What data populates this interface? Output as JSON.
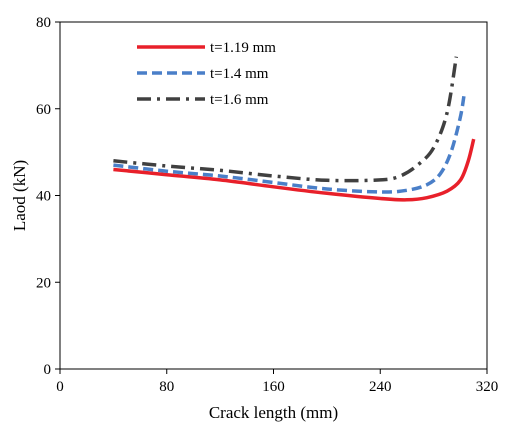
{
  "chart_data": {
    "type": "line",
    "xlabel": "Crack length (mm)",
    "ylabel": "Laod (kN)",
    "xlim": [
      0,
      320
    ],
    "ylim": [
      0,
      80
    ],
    "xticks": [
      "0",
      "80",
      "160",
      "240",
      "320"
    ],
    "yticks": [
      "0",
      "20",
      "40",
      "60",
      "80"
    ],
    "grid": false,
    "legend_position": "top-left",
    "series": [
      {
        "name": "t=1.19 mm",
        "color": "#e8202a",
        "style": "solid",
        "points": [
          [
            40,
            46
          ],
          [
            80,
            44.8
          ],
          [
            120,
            43.6
          ],
          [
            160,
            42
          ],
          [
            200,
            40.5
          ],
          [
            240,
            39.3
          ],
          [
            260,
            39
          ],
          [
            275,
            39.5
          ],
          [
            290,
            41
          ],
          [
            300,
            43.5
          ],
          [
            306,
            48
          ],
          [
            310,
            53
          ]
        ]
      },
      {
        "name": "t=1.4 mm",
        "color": "#4a7fc8",
        "style": "dashed",
        "points": [
          [
            40,
            47
          ],
          [
            80,
            45.6
          ],
          [
            120,
            44.5
          ],
          [
            160,
            43
          ],
          [
            200,
            41.5
          ],
          [
            240,
            40.8
          ],
          [
            260,
            41.2
          ],
          [
            275,
            42.5
          ],
          [
            285,
            45
          ],
          [
            293,
            50
          ],
          [
            300,
            58
          ],
          [
            303,
            63.5
          ]
        ]
      },
      {
        "name": "t=1.6 mm",
        "color": "#404040",
        "style": "dashdot",
        "points": [
          [
            40,
            48
          ],
          [
            80,
            46.8
          ],
          [
            120,
            45.8
          ],
          [
            160,
            44.5
          ],
          [
            200,
            43.5
          ],
          [
            240,
            43.6
          ],
          [
            255,
            44.5
          ],
          [
            268,
            47
          ],
          [
            280,
            51
          ],
          [
            290,
            59
          ],
          [
            297,
            72
          ]
        ]
      }
    ]
  }
}
